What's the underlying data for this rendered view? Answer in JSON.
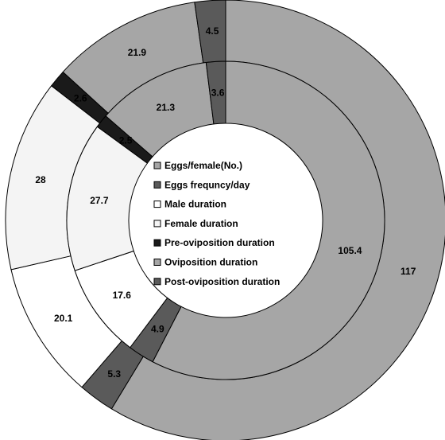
{
  "chart_data": {
    "type": "pie",
    "variant": "doughnut",
    "title": "",
    "categories": [
      "Eggs/female(No.)",
      "Eggs frequncy/day",
      "Male duration",
      "Female duration",
      "Pre-oviposition duration",
      "Oviposition duration",
      "Post-oviposition duration"
    ],
    "series": [
      {
        "ring": "outer",
        "slices": [
          {
            "category": "Eggs/female(No.)",
            "value": 117,
            "label": "117"
          },
          {
            "category": "Post-oviposition duration",
            "value": 5.3,
            "label": "5.3"
          },
          {
            "category": "Male duration",
            "value": 20.1,
            "label": "20.1"
          },
          {
            "category": "Female duration",
            "value": 28,
            "label": "28"
          },
          {
            "category": "Pre-oviposition duration",
            "value": 2.6,
            "label": "2.6"
          },
          {
            "category": "Oviposition duration",
            "value": 21.9,
            "label": "21.9"
          },
          {
            "category": "Eggs frequncy/day",
            "value": 4.5,
            "label": "4.5"
          }
        ]
      },
      {
        "ring": "inner",
        "slices": [
          {
            "category": "Eggs/female(No.)",
            "value": 105.4,
            "label": "105.4"
          },
          {
            "category": "Post-oviposition duration",
            "value": 4.9,
            "label": "4.9"
          },
          {
            "category": "Male duration",
            "value": 17.6,
            "label": "17.6"
          },
          {
            "category": "Female duration",
            "value": 27.7,
            "label": "27.7"
          },
          {
            "category": "Pre-oviposition duration",
            "value": 2.5,
            "label": "2.5"
          },
          {
            "category": "Oviposition duration",
            "value": 21.3,
            "label": "21.3"
          },
          {
            "category": "Eggs frequncy/day",
            "value": 3.6,
            "label": "3.6"
          }
        ]
      }
    ],
    "colors": {
      "Eggs/female(No.)": "#a6a6a6",
      "Eggs frequncy/day": "#5a5a5a",
      "Male duration": "#ffffff",
      "Female duration": "#f4f4f4",
      "Pre-oviposition duration": "#1a1a1a",
      "Oviposition duration": "#a6a6a6",
      "Post-oviposition duration": "#5a5a5a"
    },
    "legend": {
      "placement": "center",
      "entries": [
        "Eggs/female(No.)",
        "Eggs frequncy/day",
        "Male duration",
        "Female duration",
        "Pre-oviposition duration",
        "Oviposition duration",
        "Post-oviposition duration"
      ]
    }
  }
}
